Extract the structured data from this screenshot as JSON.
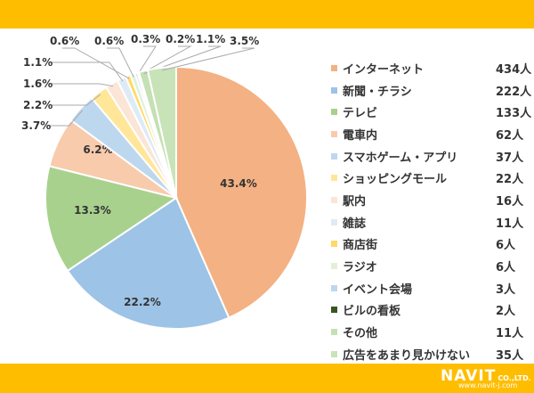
{
  "chart_data": {
    "type": "pie",
    "start": "12 o'clock, clockwise",
    "unit": "人",
    "slices": [
      {
        "label": "インターネット",
        "count": "434人",
        "value": 434,
        "percent": "43.4%",
        "color": "#f4b183"
      },
      {
        "label": "新聞・チラシ",
        "count": "222人",
        "value": 222,
        "percent": "22.2%",
        "color": "#9dc3e6"
      },
      {
        "label": "テレビ",
        "count": "133人",
        "value": 133,
        "percent": "13.3%",
        "color": "#a9d18e"
      },
      {
        "label": "電車内",
        "count": "62人",
        "value": 62,
        "percent": "6.2%",
        "color": "#f8cbad"
      },
      {
        "label": "スマホゲーム・アプリ",
        "count": "37人",
        "value": 37,
        "percent": "3.7%",
        "color": "#bdd7ee"
      },
      {
        "label": "ショッピングモール",
        "count": "22人",
        "value": 22,
        "percent": "2.2%",
        "color": "#ffe699"
      },
      {
        "label": "駅内",
        "count": "16人",
        "value": 16,
        "percent": "1.6%",
        "color": "#fbe5d6"
      },
      {
        "label": "雑誌",
        "count": "11人",
        "value": 11,
        "percent": "1.1%",
        "color": "#deebf7"
      },
      {
        "label": "商店街",
        "count": "6人",
        "value": 6,
        "percent": "0.6%",
        "color": "#ffd966"
      },
      {
        "label": "ラジオ",
        "count": "6人",
        "value": 6,
        "percent": "0.6%",
        "color": "#e2f0d9"
      },
      {
        "label": "イベント会場",
        "count": "3人",
        "value": 3,
        "percent": "0.3%",
        "color": "#bdd7ee"
      },
      {
        "label": "ビルの看板",
        "count": "2人",
        "value": 2,
        "percent": "0.2%",
        "color": "#375623"
      },
      {
        "label": "その他",
        "count": "11人",
        "value": 11,
        "percent": "1.1%",
        "color": "#c5e0b4"
      },
      {
        "label": "広告をあまり見かけない",
        "count": "35人",
        "value": 35,
        "percent": "3.5%",
        "color": "#c9e3b8"
      }
    ],
    "legend": "right"
  },
  "brand": {
    "logo": "NAVIT",
    "suffix": "CO.,LTD.",
    "url": "www.navit-j.com",
    "band_color": "#ffbd00"
  }
}
